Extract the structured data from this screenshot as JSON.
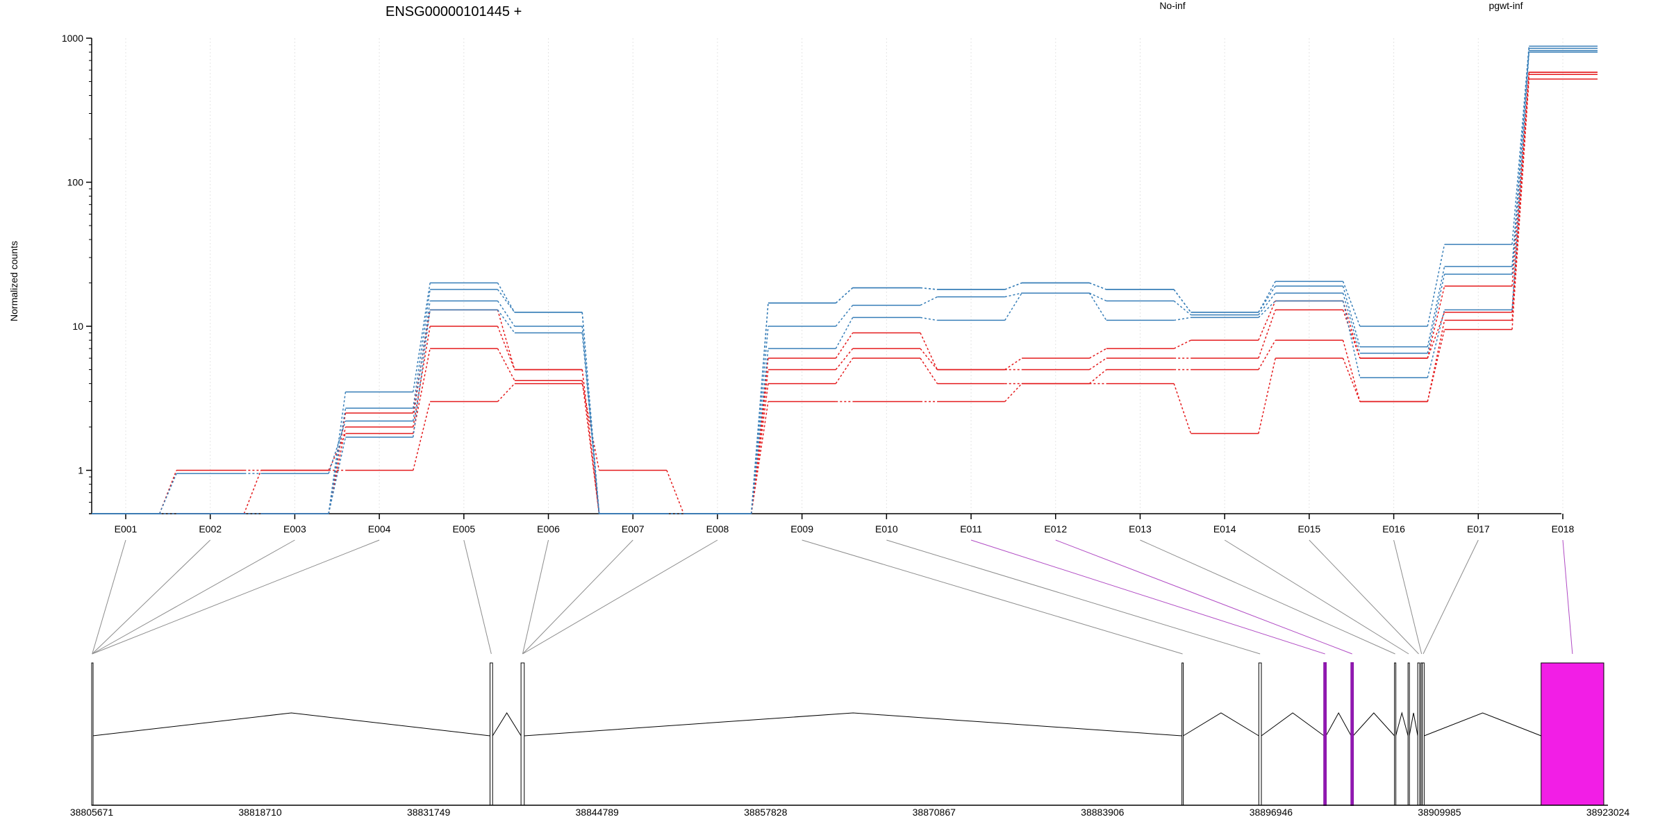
{
  "chart_data": {
    "type": "line",
    "title": "ENSG00000101445 +",
    "ylabel": "Normalized counts",
    "xlabel": "",
    "y_scale": "log",
    "ylim": [
      0.5,
      1000
    ],
    "y_ticks": [
      1,
      10,
      100,
      1000
    ],
    "y_tick_labels": [
      "1",
      "10",
      "100",
      "1000"
    ],
    "grid": "vertical, light gray, dotted",
    "legend_placement": "top",
    "categories": [
      "E001",
      "E002",
      "E003",
      "E004",
      "E005",
      "E006",
      "E007",
      "E008",
      "E009",
      "E010",
      "E011",
      "E012",
      "E013",
      "E014",
      "E015",
      "E016",
      "E017",
      "E018"
    ],
    "legend": [
      {
        "name": "No-inf",
        "color": "#e41a1c"
      },
      {
        "name": "pgwt-inf",
        "color": "#377eb8"
      }
    ],
    "series": [
      {
        "name": "No-inf",
        "color": "#e41a1c",
        "values": [
          0.5,
          1,
          1,
          1,
          3,
          4,
          1,
          0.5,
          3,
          3,
          3,
          4,
          4,
          1.8,
          6,
          3,
          9.5,
          520
        ]
      },
      {
        "name": "No-inf",
        "color": "#e41a1c",
        "values": [
          0.5,
          0.5,
          1,
          1.8,
          7,
          4.2,
          0.5,
          0.5,
          4,
          6,
          4,
          4,
          5,
          5,
          8,
          3,
          11,
          560
        ]
      },
      {
        "name": "No-inf",
        "color": "#e41a1c",
        "values": [
          0.5,
          0.5,
          0.5,
          2,
          10,
          5,
          0.5,
          0.5,
          5,
          7,
          5,
          5,
          6,
          6,
          13,
          6,
          12.5,
          580
        ]
      },
      {
        "name": "No-inf",
        "color": "#e41a1c",
        "values": [
          0.5,
          0.5,
          0.5,
          2.5,
          13,
          5,
          0.5,
          0.5,
          6,
          9,
          5,
          6,
          7,
          8,
          15,
          6,
          19,
          580
        ]
      },
      {
        "name": "pgwt-inf",
        "color": "#377eb8",
        "values": [
          0.5,
          0.5,
          0.5,
          1.7,
          13,
          9,
          0.5,
          0.5,
          7,
          11.5,
          11,
          17,
          11,
          11.5,
          15,
          4.4,
          13,
          800
        ]
      },
      {
        "name": "pgwt-inf",
        "color": "#377eb8",
        "values": [
          0.5,
          0.95,
          0.95,
          2.2,
          15,
          10,
          0.5,
          0.5,
          10,
          14,
          16,
          17,
          15,
          12,
          17,
          6.5,
          23,
          820
        ]
      },
      {
        "name": "pgwt-inf",
        "color": "#377eb8",
        "values": [
          0.5,
          0.5,
          0.5,
          2.7,
          18,
          12.5,
          0.5,
          0.5,
          14.5,
          18.5,
          18,
          20,
          18,
          12.5,
          19,
          7.2,
          26,
          850
        ]
      },
      {
        "name": "pgwt-inf",
        "color": "#377eb8",
        "values": [
          0.5,
          0.5,
          0.5,
          3.5,
          20,
          12.5,
          0.5,
          0.5,
          14.5,
          18.5,
          18,
          20,
          18,
          12.5,
          20.5,
          10,
          37,
          880
        ]
      }
    ],
    "gene_model": {
      "coordinate_ticks": [
        38805671,
        38818710,
        38831749,
        38844789,
        38857828,
        38870867,
        38883906,
        38896946,
        38909985,
        38923024
      ],
      "coordinate_range": [
        38805671,
        38923024
      ],
      "exons": [
        {
          "id": "E001",
          "start": 38805671,
          "end": 38805750,
          "highlight": false
        },
        {
          "id": "E002",
          "start": 38805671,
          "end": 38805750,
          "highlight": false
        },
        {
          "id": "E003",
          "start": 38805671,
          "end": 38805750,
          "highlight": false
        },
        {
          "id": "E004",
          "start": 38805671,
          "end": 38805750,
          "highlight": false
        },
        {
          "id": "E005",
          "start": 38836500,
          "end": 38836700,
          "highlight": false
        },
        {
          "id": "E006",
          "start": 38838900,
          "end": 38839150,
          "highlight": false
        },
        {
          "id": "E007",
          "start": 38838900,
          "end": 38839150,
          "highlight": false
        },
        {
          "id": "E008",
          "start": 38838900,
          "end": 38839150,
          "highlight": false
        },
        {
          "id": "E009",
          "start": 38890050,
          "end": 38890150,
          "highlight": false
        },
        {
          "id": "E010",
          "start": 38896000,
          "end": 38896200,
          "highlight": false
        },
        {
          "id": "E011",
          "start": 38901050,
          "end": 38901200,
          "highlight": true
        },
        {
          "id": "E012",
          "start": 38903150,
          "end": 38903300,
          "highlight": true
        },
        {
          "id": "E013",
          "start": 38906500,
          "end": 38906600,
          "highlight": false
        },
        {
          "id": "E014",
          "start": 38907550,
          "end": 38907650,
          "highlight": false
        },
        {
          "id": "E015",
          "start": 38908300,
          "end": 38908450,
          "highlight": false
        },
        {
          "id": "E016",
          "start": 38908550,
          "end": 38908650,
          "highlight": false
        },
        {
          "id": "E017",
          "start": 38908650,
          "end": 38908800,
          "highlight": false
        },
        {
          "id": "E018",
          "start": 38917850,
          "end": 38922700,
          "highlight": true
        }
      ]
    }
  }
}
